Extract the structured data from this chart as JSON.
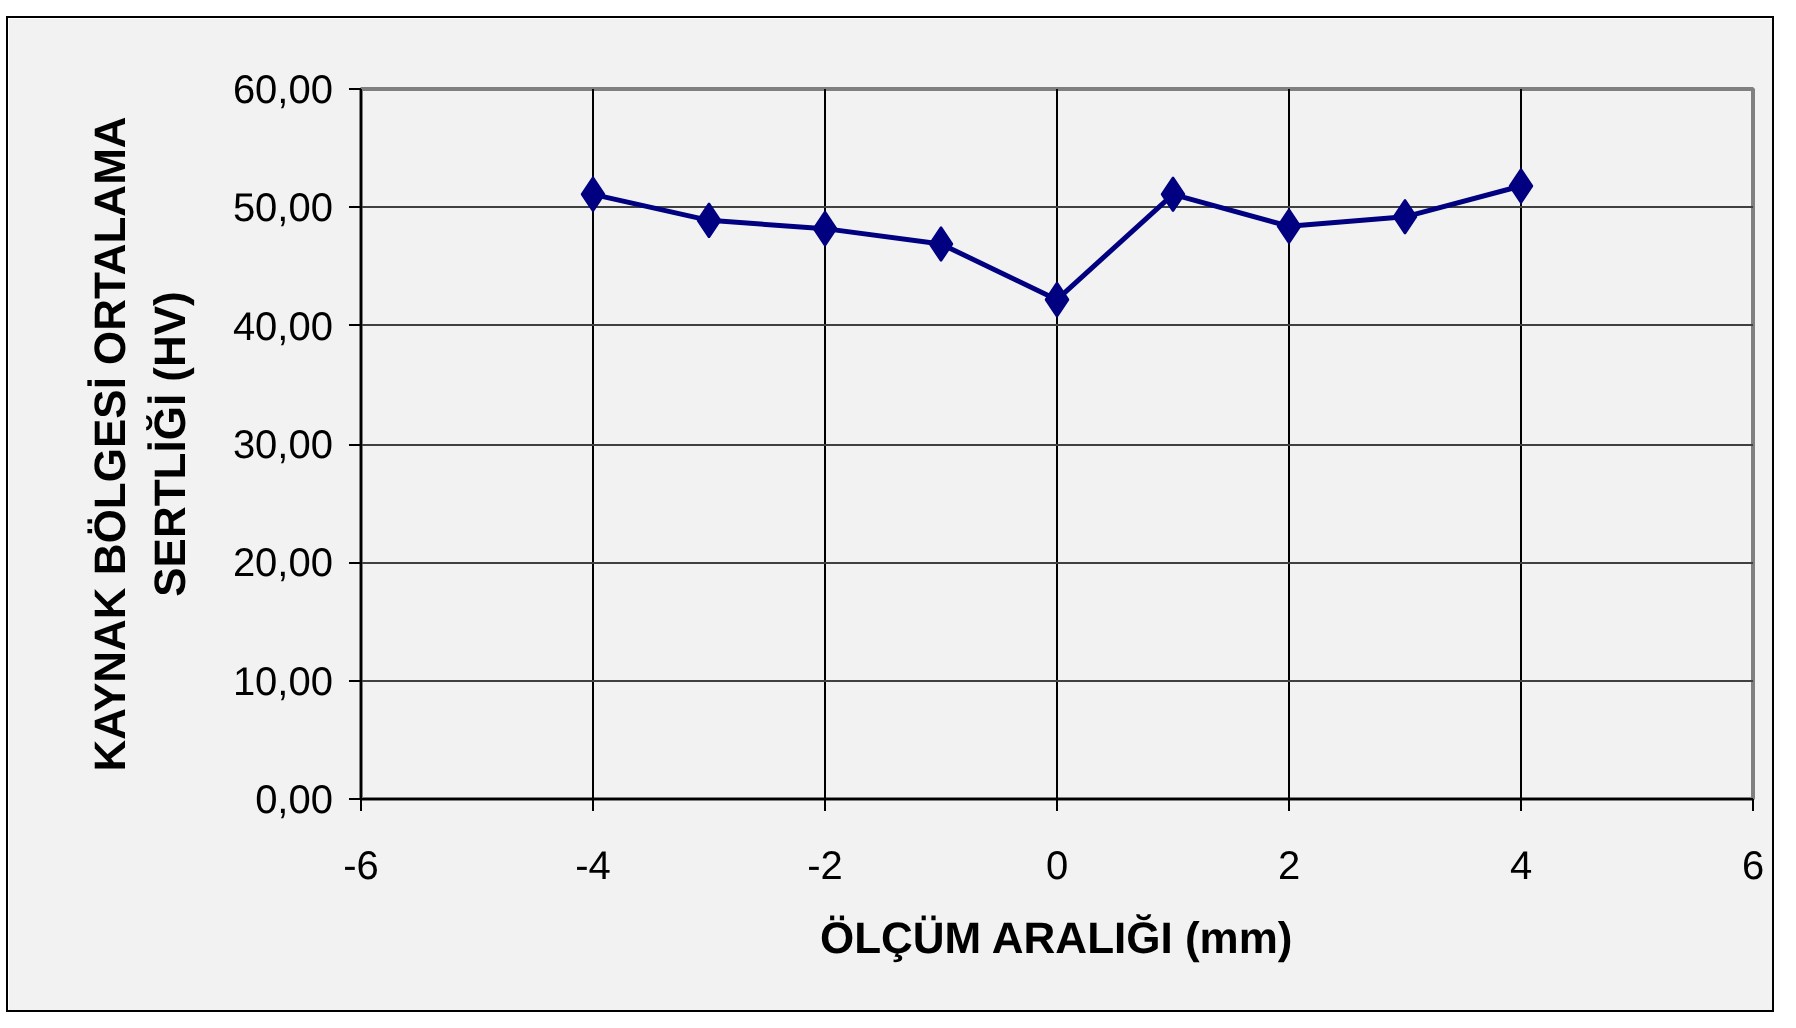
{
  "chart_data": {
    "type": "line",
    "xlabel": "ÖLÇÜM ARALIĞI (mm)",
    "ylabel": "KAYNAK BÖLGESİ ORTALAMA\nSERTLİĞİ (HV)",
    "x": [
      -4,
      -3,
      -2,
      -1,
      0,
      1,
      2,
      3,
      4
    ],
    "series": [
      {
        "color": "#000080",
        "values": [
          51.1,
          48.9,
          48.2,
          46.9,
          42.2,
          51.1,
          48.4,
          49.2,
          51.8
        ]
      }
    ],
    "xlim": [
      -6,
      6
    ],
    "ylim": [
      0,
      60
    ],
    "xticks": [
      -6,
      -4,
      -2,
      0,
      2,
      4,
      6
    ],
    "yticks": [
      {
        "value": 0,
        "label": "0,00"
      },
      {
        "value": 10,
        "label": "10,00"
      },
      {
        "value": 20,
        "label": "20,00"
      },
      {
        "value": 30,
        "label": "30,00"
      },
      {
        "value": 40,
        "label": "40,00"
      },
      {
        "value": 50,
        "label": "50,00"
      },
      {
        "value": 60,
        "label": "60,00"
      }
    ],
    "grid": true,
    "marker": "diamond",
    "line_style": "solid"
  }
}
